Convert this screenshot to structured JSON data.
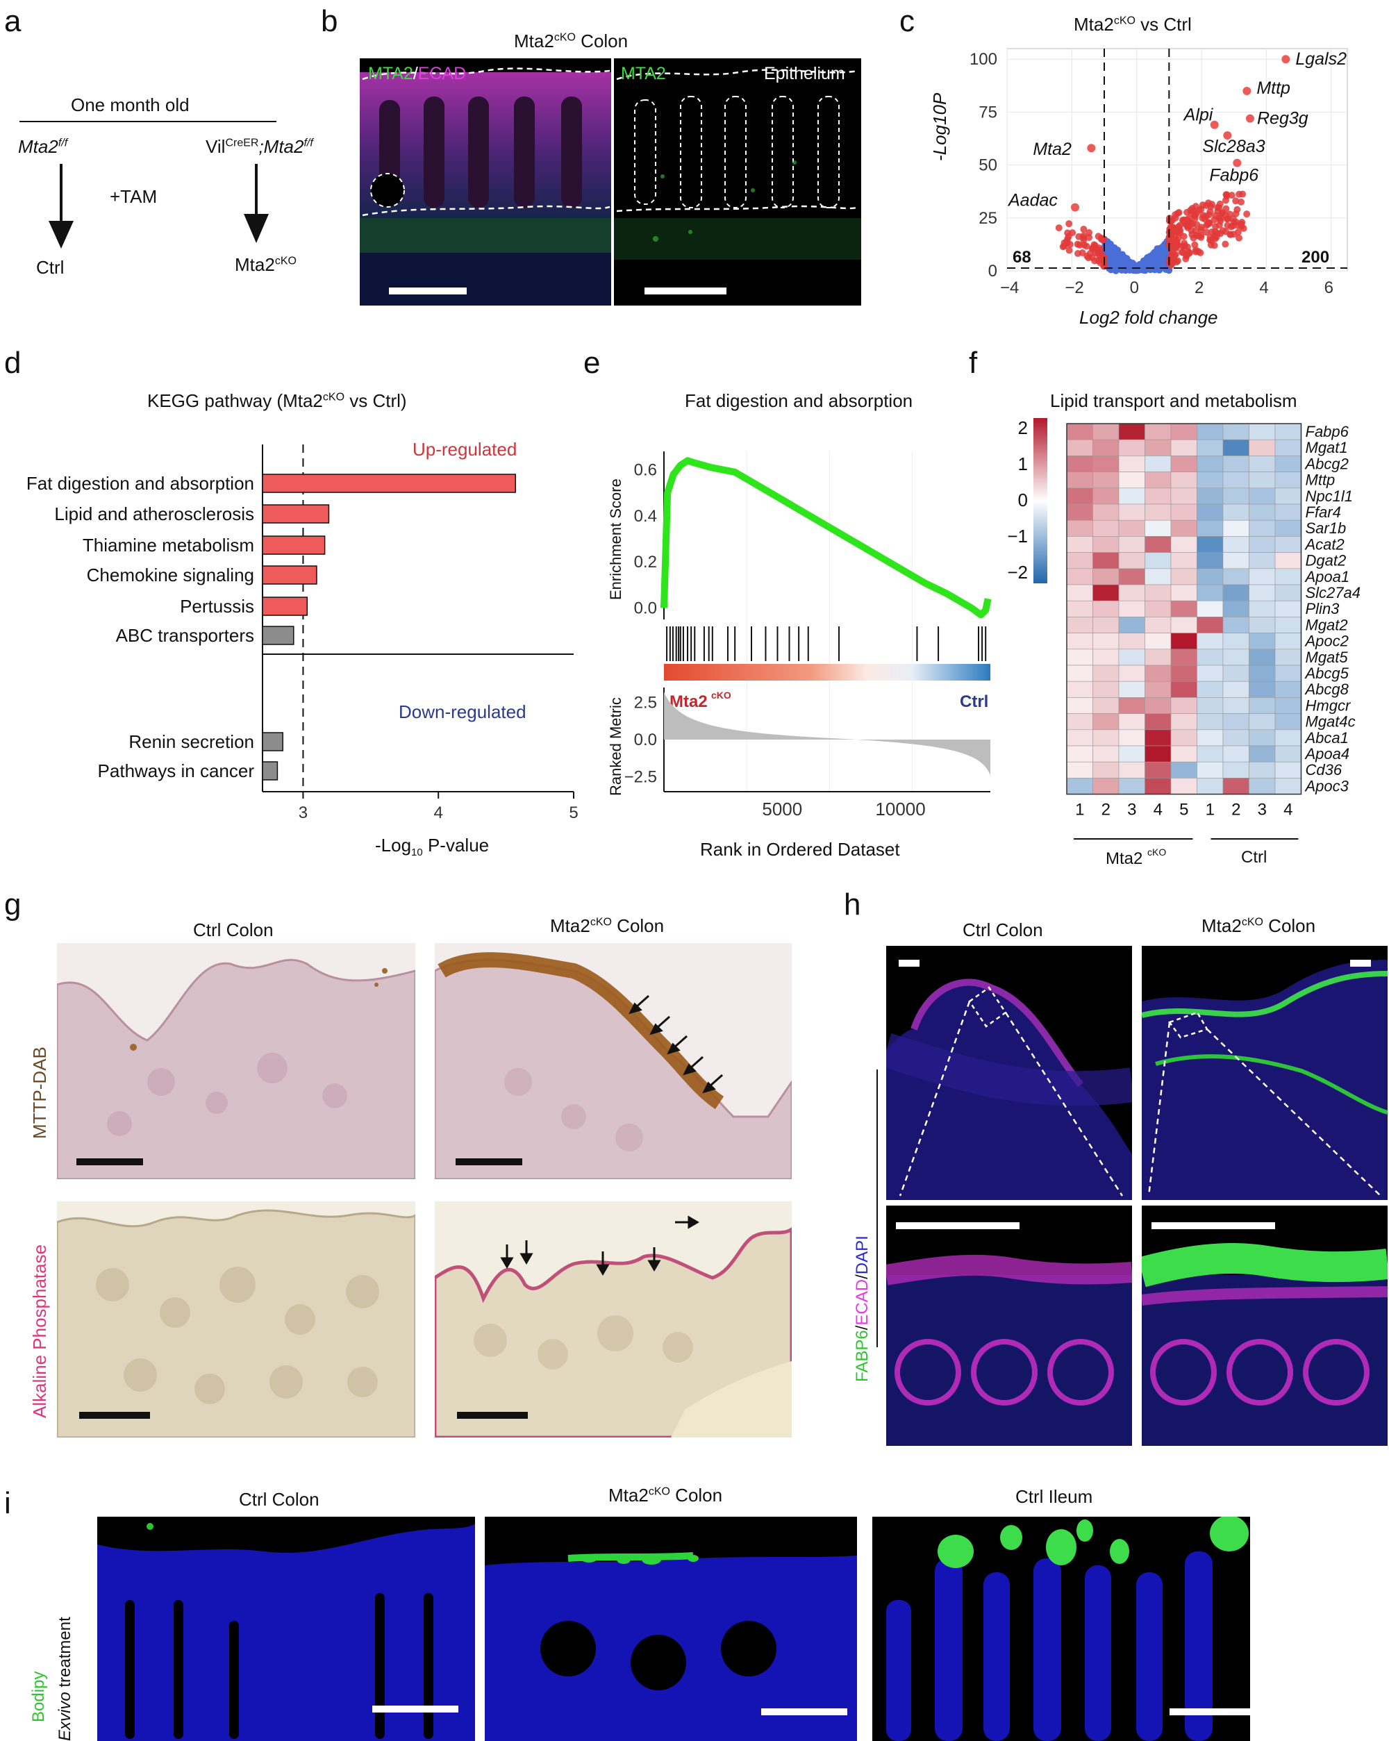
{
  "panels": {
    "a": "a",
    "b": "b",
    "c": "c",
    "d": "d",
    "e": "e",
    "f": "f",
    "g": "g",
    "h": "h",
    "i": "i"
  },
  "a": {
    "title": "One month old",
    "left_genotype": "Mta2",
    "left_sup": "f/f",
    "right_prefix": "Vil",
    "right_sup1": "CreER",
    "right_genotype": ";Mta2",
    "right_sup2": "f/f",
    "treatment": "+TAM",
    "ctrl": "Ctrl",
    "cko": "Mta2",
    "cko_sup": "cKO"
  },
  "b": {
    "title": "Mta2",
    "title_sup": "cKO",
    "title_suffix": " Colon",
    "left_label_green": "MTA2",
    "left_label_sep": "/",
    "left_label_magenta": "ECAD",
    "right_label_green": "MTA2",
    "right_label_white": "Epithelium"
  },
  "c": {
    "title": "Mta2",
    "title_sup": "cKO",
    "title_suffix": " vs Ctrl",
    "ylabel": "-Log10P",
    "xlabel": "Log2 fold change",
    "down_count": "68",
    "up_count": "200",
    "genes": [
      {
        "name": "Lgals2",
        "x": 4.6,
        "y": 100
      },
      {
        "name": "Mttp",
        "x": 3.4,
        "y": 85
      },
      {
        "name": "Reg3g",
        "x": 3.5,
        "y": 72
      },
      {
        "name": "Alpi",
        "x": 2.4,
        "y": 69
      },
      {
        "name": "Slc28a3",
        "x": 2.8,
        "y": 64
      },
      {
        "name": "Mta2",
        "x": -1.4,
        "y": 58
      },
      {
        "name": "Fabp6",
        "x": 3.1,
        "y": 51
      },
      {
        "name": "Aadac",
        "x": -1.9,
        "y": 30
      }
    ],
    "xticks": [
      "−4",
      "−2",
      "0",
      "2",
      "4",
      "6"
    ],
    "yticks": [
      "0",
      "25",
      "50",
      "75",
      "100"
    ]
  },
  "d": {
    "title": "KEGG pathway (Mta2",
    "title_sup": "cKO",
    "title_suffix": " vs Ctrl)",
    "up_label": "Up-regulated",
    "down_label": "Down-regulated",
    "xlabel": "-Log",
    "xlabel_sub": "10",
    "xlabel_suffix": " P-value",
    "xticks": [
      "3",
      "4",
      "5"
    ]
  },
  "e": {
    "title": "Fat digestion and absorption",
    "ylabel_top": "Enrichment Score",
    "ylabel_bottom": "Ranked Metric",
    "xlabel": "Rank in Ordered Dataset",
    "cko": "Mta2",
    "cko_sup": "cKO",
    "ctrl": "Ctrl",
    "yticks_top": [
      "0.6",
      "0.4",
      "0.2",
      "0.0"
    ],
    "yticks_bottom": [
      "2.5",
      "0.0",
      "−2.5"
    ],
    "xticks": [
      "5000",
      "10000"
    ]
  },
  "f": {
    "title": "Lipid transport and metabolism",
    "scale_ticks": [
      "2",
      "1",
      "0",
      "−1",
      "−2"
    ],
    "genes": [
      "Fabp6",
      "Mgat1",
      "Abcg2",
      "Mttp",
      "Npc1l1",
      "Ffar4",
      "Sar1b",
      "Acat2",
      "Dgat2",
      "Apoa1",
      "Slc27a4",
      "Plin3",
      "Mgat2",
      "Apoc2",
      "Mgat5",
      "Abcg5",
      "Abcg8",
      "Hmgcr",
      "Mgat4c",
      "Abca1",
      "Apoa4",
      "Cd36",
      "Apoc3"
    ],
    "cols": [
      "1",
      "2",
      "3",
      "4",
      "5",
      "1",
      "2",
      "3",
      "4"
    ],
    "group_cko": "Mta2",
    "group_cko_sup": "cKO",
    "group_ctrl": "Ctrl",
    "matrix": [
      [
        1.2,
        0.9,
        2.2,
        0.8,
        1.0,
        -1.0,
        -0.8,
        -0.5,
        -0.6
      ],
      [
        0.7,
        1.1,
        0.6,
        0.9,
        0.4,
        -0.8,
        -1.8,
        0.5,
        -0.7
      ],
      [
        1.3,
        1.2,
        0.3,
        -0.4,
        1.0,
        -1.0,
        -0.8,
        -0.6,
        -0.9
      ],
      [
        1.0,
        0.9,
        0.2,
        0.8,
        0.5,
        -0.9,
        -0.7,
        -0.6,
        -0.7
      ],
      [
        1.4,
        1.0,
        -0.3,
        0.6,
        0.5,
        -1.1,
        -0.8,
        -0.9,
        -0.6
      ],
      [
        1.3,
        0.7,
        0.4,
        0.5,
        0.6,
        -1.2,
        -0.6,
        -0.8,
        -0.7
      ],
      [
        0.8,
        0.6,
        0.7,
        -0.2,
        0.9,
        -1.0,
        -0.2,
        -0.7,
        -0.9
      ],
      [
        0.4,
        0.7,
        0.4,
        1.5,
        0.3,
        -1.7,
        -0.4,
        -0.7,
        -0.6
      ],
      [
        0.6,
        1.6,
        0.5,
        -0.5,
        0.4,
        -1.5,
        -0.3,
        -0.6,
        0.3
      ],
      [
        0.6,
        0.9,
        1.4,
        -0.3,
        0.5,
        -1.1,
        -0.8,
        -0.4,
        -0.5
      ],
      [
        0.3,
        2.2,
        0.4,
        0.5,
        0.3,
        -1.0,
        -1.4,
        -0.4,
        -0.6
      ],
      [
        0.4,
        0.6,
        0.3,
        0.6,
        1.3,
        -0.2,
        -1.2,
        -0.5,
        -0.4
      ],
      [
        0.5,
        0.5,
        -1.1,
        0.4,
        0.3,
        1.6,
        -0.9,
        -0.6,
        -0.5
      ],
      [
        0.3,
        0.3,
        0.4,
        0.2,
        2.3,
        -0.4,
        -0.5,
        -1.0,
        -0.5
      ],
      [
        0.2,
        0.3,
        -0.4,
        0.5,
        1.4,
        -0.6,
        -0.5,
        -1.3,
        -0.6
      ],
      [
        0.2,
        0.5,
        0.3,
        1.0,
        1.5,
        -0.4,
        -0.6,
        -1.2,
        -0.7
      ],
      [
        0.3,
        0.5,
        -0.3,
        0.9,
        1.7,
        -0.6,
        -0.4,
        -1.2,
        -0.9
      ],
      [
        0.2,
        0.5,
        1.2,
        1.0,
        0.6,
        -0.6,
        -0.5,
        -0.8,
        -0.9
      ],
      [
        0.4,
        0.9,
        0.3,
        1.6,
        0.4,
        -0.6,
        -0.7,
        -0.6,
        -0.9
      ],
      [
        0.3,
        0.4,
        0.2,
        2.2,
        0.5,
        -0.3,
        -0.6,
        -0.8,
        -0.5
      ],
      [
        0.2,
        0.3,
        -0.3,
        2.4,
        0.3,
        -0.5,
        -0.4,
        -1.1,
        -0.6
      ],
      [
        0.2,
        0.5,
        0.3,
        1.6,
        -1.1,
        -0.3,
        -0.5,
        -0.6,
        -0.4
      ],
      [
        -0.9,
        0.9,
        -0.8,
        1.8,
        0.3,
        -0.5,
        1.6,
        -0.8,
        -0.5
      ]
    ]
  },
  "g": {
    "ctrl_title": "Ctrl Colon",
    "cko_title": "Mta2",
    "cko_sup": "cKO",
    "cko_suffix": " Colon",
    "row1": "MTTP-DAB",
    "row2_a": "Alkaline ",
    "row2_b": "Phosphatase"
  },
  "h": {
    "ctrl_title": "Ctrl Colon",
    "cko_title": "Mta2",
    "cko_sup": "cKO",
    "cko_suffix": " Colon",
    "side_green": "FABP6",
    "side_sep1": "/",
    "side_magenta": "ECAD",
    "side_sep2": "/",
    "side_blue": "DAPI"
  },
  "i": {
    "ctrl_title": "Ctrl Colon",
    "cko_title": "Mta2",
    "cko_sup": "cKO",
    "cko_suffix": " Colon",
    "ileum_title": "Ctrl Ileum",
    "side_green": "Bodipy",
    "side_italic": "Exvivo",
    "side_suffix": " treatment"
  },
  "chart_data": [
    {
      "type": "scatter",
      "title": "Mta2cKO vs Ctrl",
      "xlabel": "Log2 fold change",
      "ylabel": "-Log10P",
      "xlim": [
        -4,
        6.5
      ],
      "ylim": [
        0,
        105
      ],
      "series": [],
      "thresholds": {
        "x": [
          -1,
          1
        ],
        "y": 1.3
      }
    },
    {
      "type": "bar",
      "title": "KEGG pathway (Mta2cKO vs Ctrl)",
      "xlabel": "-Log10 P-value",
      "categories": [
        "Fat digestion and absorption",
        "Lipid and atherosclerosis",
        "Thiamine metabolism",
        "Chemokine signaling",
        "Pertussis",
        "ABC transporters",
        "Renin secretion",
        "Pathways in cancer"
      ],
      "values": [
        4.57,
        3.19,
        3.16,
        3.1,
        3.03,
        2.93,
        2.85,
        2.81
      ],
      "groups": [
        "Up-regulated",
        "Up-regulated",
        "Up-regulated",
        "Up-regulated",
        "Up-regulated",
        "Up-regulated",
        "Down-regulated",
        "Down-regulated"
      ],
      "xlim": [
        2.7,
        5
      ],
      "reference_line": 3
    },
    {
      "type": "line",
      "title": "Fat digestion and absorption",
      "xlabel": "Rank in Ordered Dataset",
      "ylabel": "Enrichment Score",
      "xlim": [
        0,
        13800
      ],
      "ylim": [
        -0.05,
        0.68
      ],
      "x": [
        0,
        150,
        400,
        700,
        1000,
        1300,
        2000,
        3000,
        4000,
        5000,
        6000,
        7000,
        8000,
        9000,
        10000,
        11000,
        12000,
        13000,
        13400,
        13600,
        13700
      ],
      "y": [
        0.0,
        0.5,
        0.58,
        0.62,
        0.64,
        0.63,
        0.61,
        0.59,
        0.53,
        0.47,
        0.41,
        0.35,
        0.29,
        0.23,
        0.17,
        0.11,
        0.06,
        0.0,
        -0.03,
        -0.01,
        0.04
      ],
      "hits": [
        120,
        260,
        380,
        520,
        620,
        700,
        820,
        1000,
        1150,
        1300,
        1700,
        1900,
        2050,
        2700,
        3000,
        3700,
        4300,
        4800,
        5300,
        5700,
        6100,
        7400,
        10700,
        11600,
        13300,
        13450,
        13600
      ]
    },
    {
      "type": "heatmap",
      "title": "Lipid transport and metabolism",
      "ylim": [
        -2.3,
        2.3
      ]
    }
  ]
}
